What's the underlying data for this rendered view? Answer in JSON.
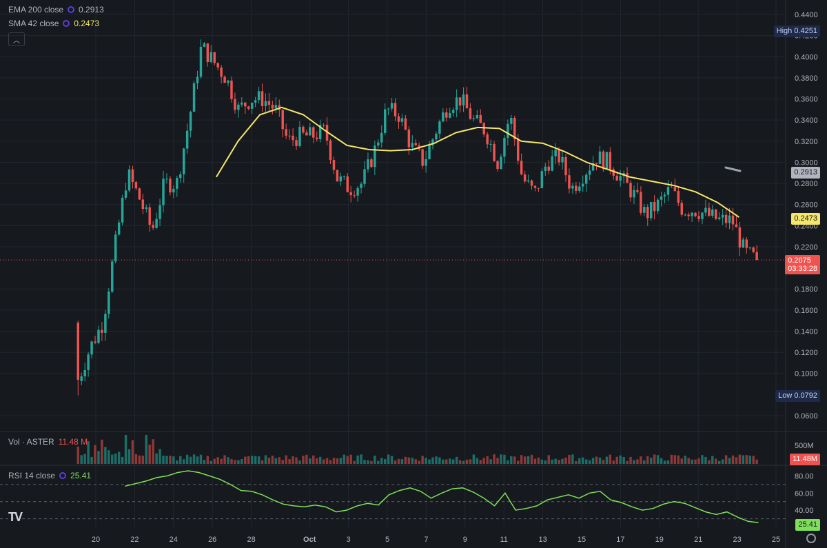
{
  "legend": {
    "ema_label": "EMA 200 close",
    "ema_value": "0.2913",
    "sma_label": "SMA 42 close",
    "sma_value": "0.2473",
    "vol_label": "Vol · ASTER",
    "vol_value": "11.48 M",
    "rsi_label": "RSI 14 close",
    "rsi_value": "25.41"
  },
  "tags": {
    "high_label": "High",
    "high_value": "0.4251",
    "low_label": "Low",
    "low_value": "0.0792",
    "ema_tag": "0.2913",
    "sma_tag": "0.2473",
    "last_price": "0.2075",
    "countdown": "03:33:28",
    "vol_axis": "500M",
    "vol_tag": "11.48M",
    "rsi_tag": "25.41"
  },
  "colors": {
    "up": "#26a69a",
    "down": "#ef5350",
    "sma": "#f5e66b",
    "rsi": "#7ee05a",
    "grid": "#22262e",
    "text": "#b2b5be",
    "bg": "#161a1e"
  },
  "chart_data": [
    {
      "type": "candlestick",
      "title": "ASTER",
      "x_ticks": [
        "20",
        "22",
        "24",
        "26",
        "28",
        "Oct",
        "3",
        "5",
        "7",
        "9",
        "11",
        "13",
        "15",
        "17",
        "19",
        "21",
        "23",
        "25"
      ],
      "y_ticks": [
        "0.4400",
        "0.4200",
        "0.4000",
        "0.3800",
        "0.3600",
        "0.3400",
        "0.3200",
        "0.3000",
        "0.2800",
        "0.2600",
        "0.2400",
        "0.2200",
        "0.1800",
        "0.1600",
        "0.1400",
        "0.1200",
        "0.1000",
        "0.0600"
      ],
      "ylim": [
        0.05,
        0.45
      ],
      "high": 0.4251,
      "low": 0.0792,
      "last": 0.2075,
      "close_path": [
        0.093,
        0.125,
        0.148,
        0.22,
        0.29,
        0.265,
        0.235,
        0.28,
        0.28,
        0.34,
        0.41,
        0.395,
        0.38,
        0.35,
        0.36,
        0.36,
        0.35,
        0.32,
        0.325,
        0.325,
        0.33,
        0.285,
        0.275,
        0.28,
        0.31,
        0.35,
        0.345,
        0.315,
        0.3,
        0.33,
        0.355,
        0.36,
        0.34,
        0.33,
        0.3,
        0.345,
        0.285,
        0.27,
        0.3,
        0.305,
        0.275,
        0.29,
        0.305,
        0.3,
        0.285,
        0.27,
        0.25,
        0.26,
        0.275,
        0.255,
        0.255,
        0.25,
        0.245,
        0.245,
        0.215,
        0.2075
      ],
      "series": [
        {
          "name": "SMA 42 close",
          "x_start": 26.2,
          "values": [
            0.286,
            0.32,
            0.345,
            0.352,
            0.345,
            0.33,
            0.316,
            0.312,
            0.311,
            0.312,
            0.318,
            0.328,
            0.333,
            0.332,
            0.32,
            0.318,
            0.31,
            0.3,
            0.293,
            0.286,
            0.282,
            0.278,
            0.272,
            0.262,
            0.248
          ]
        }
      ]
    },
    {
      "type": "bar",
      "title": "Vol · ASTER",
      "y_ticks": [
        "500M"
      ],
      "last": "11.48M"
    },
    {
      "type": "line",
      "title": "RSI 14 close",
      "y_ticks": [
        "80.00",
        "60.00",
        "40.00"
      ],
      "ylim": [
        20,
        90
      ],
      "bands": [
        70,
        50,
        30
      ],
      "values": [
        68,
        71,
        74,
        78,
        80,
        84,
        86,
        84,
        80,
        76,
        70,
        63,
        62,
        58,
        52,
        47,
        45,
        44,
        46,
        44,
        38,
        40,
        45,
        48,
        46,
        58,
        63,
        66,
        62,
        54,
        60,
        65,
        66,
        61,
        54,
        45,
        60,
        40,
        42,
        45,
        52,
        55,
        58,
        54,
        60,
        62,
        52,
        49,
        44,
        40,
        42,
        47,
        50,
        48,
        43,
        38,
        35,
        38,
        32,
        27,
        25.41
      ]
    }
  ]
}
